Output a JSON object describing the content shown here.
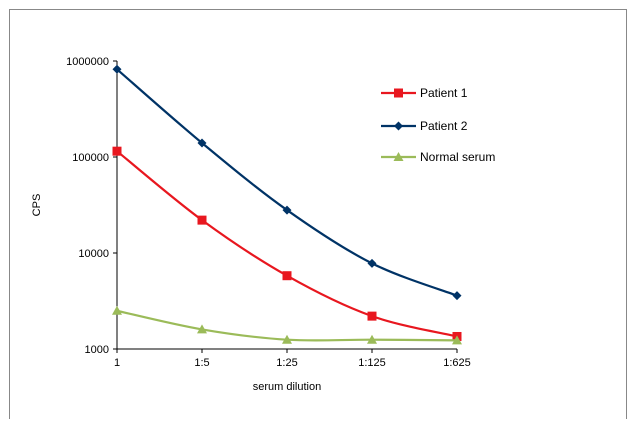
{
  "chart_data": {
    "type": "line",
    "categories": [
      "1",
      "1:5",
      "1:25",
      "1:125",
      "1:625"
    ],
    "series": [
      {
        "name": "Patient 1",
        "color": "#e8171f",
        "marker": "square",
        "values": [
          115000,
          22000,
          5800,
          2200,
          1350
        ]
      },
      {
        "name": "Patient 2",
        "color": "#003366",
        "marker": "diamond",
        "values": [
          820000,
          140000,
          28000,
          7800,
          3600
        ]
      },
      {
        "name": "Normal serum",
        "color": "#9bbb59",
        "marker": "triangle",
        "values": [
          2500,
          1600,
          1250,
          1250,
          1230
        ]
      }
    ],
    "xlabel": "serum dilution",
    "ylabel": "CPS",
    "yscale": "log",
    "ylim": [
      1000,
      1000000
    ],
    "yticks": [
      "1000",
      "10000",
      "100000",
      "1000000"
    ],
    "legend": "right",
    "grid": false
  }
}
